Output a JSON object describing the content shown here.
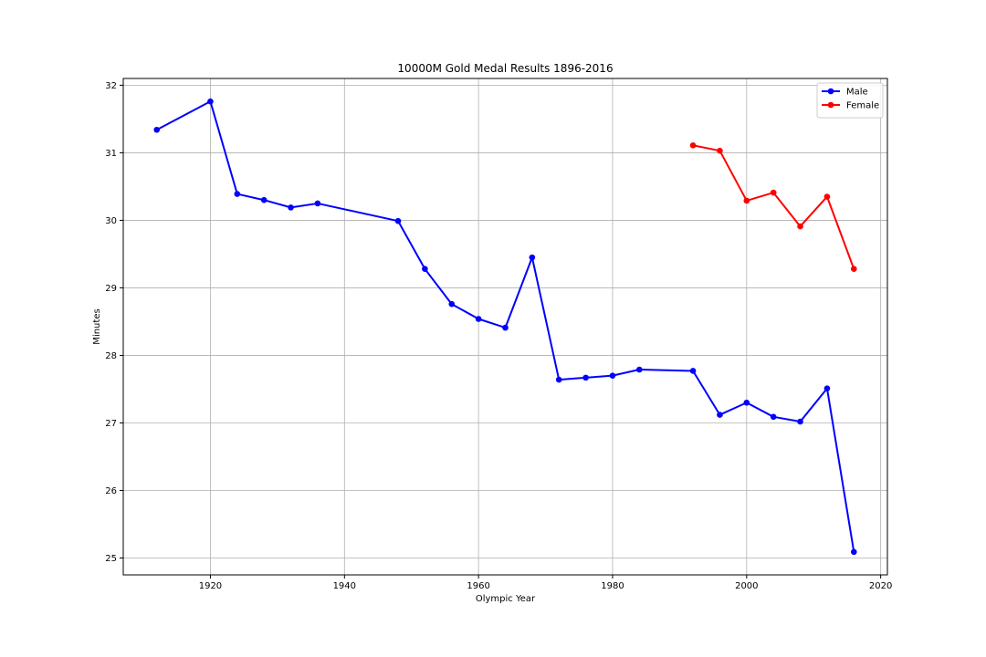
{
  "chart_data": {
    "type": "line",
    "title": "10000M Gold Medal Results 1896-2016",
    "xlabel": "Olympic Year",
    "ylabel": "Minutes",
    "xlim": [
      1907,
      2021
    ],
    "ylim": [
      24.75,
      32.1
    ],
    "xticks": [
      1920,
      1940,
      1960,
      1980,
      2000,
      2020
    ],
    "yticks": [
      25,
      26,
      27,
      28,
      29,
      30,
      31,
      32
    ],
    "grid": true,
    "legend_position": "top-right",
    "series": [
      {
        "name": "Male",
        "color": "#0000ff",
        "x": [
          1912,
          1920,
          1924,
          1928,
          1932,
          1936,
          1948,
          1952,
          1956,
          1960,
          1964,
          1968,
          1972,
          1976,
          1980,
          1984,
          1992,
          1996,
          2000,
          2004,
          2008,
          2012,
          2016
        ],
        "y": [
          31.34,
          31.76,
          30.39,
          30.3,
          30.19,
          30.25,
          29.99,
          29.28,
          28.76,
          28.54,
          28.41,
          29.45,
          27.64,
          27.67,
          27.7,
          27.79,
          27.77,
          27.12,
          27.3,
          27.09,
          27.02,
          27.51,
          25.09
        ]
      },
      {
        "name": "Female",
        "color": "#ff0000",
        "x": [
          1992,
          1996,
          2000,
          2004,
          2008,
          2012,
          2016
        ],
        "y": [
          31.11,
          31.03,
          30.29,
          30.41,
          29.91,
          30.35,
          29.28
        ]
      }
    ]
  }
}
